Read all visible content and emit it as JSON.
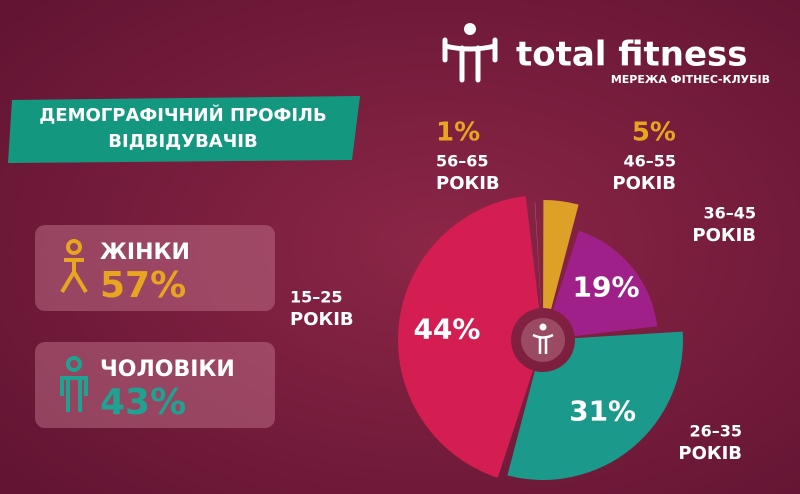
{
  "brand": {
    "name": "total fitness",
    "tagline": "МЕРЕЖА ФІТНЕС-КЛУБІВ"
  },
  "title_lines": [
    "ДЕМОГРАФІЧНИЙ ПРОФІЛЬ",
    "ВІДВІДУВАЧІВ"
  ],
  "gender": {
    "categories": [
      "ЖІНКИ",
      "ЧОЛОВІКИ"
    ],
    "values": [
      57,
      43
    ],
    "value_labels": [
      "57%",
      "43%"
    ],
    "colors": [
      "#e8a620",
      "#1fa291"
    ]
  },
  "chart_data": {
    "type": "pie",
    "categories": [
      [
        "56–65",
        "РОКІВ"
      ],
      [
        "46–55",
        "РОКІВ"
      ],
      [
        "36–45",
        "РОКІВ"
      ],
      [
        "26–35",
        "РОКІВ"
      ],
      [
        "15–25",
        "РОКІВ"
      ]
    ],
    "values": [
      1,
      5,
      19,
      31,
      44
    ],
    "value_labels": [
      "1%",
      "5%",
      "19%",
      "31%",
      "44%"
    ],
    "colors": [
      "#b37a8a",
      "#dca126",
      "#a0208a",
      "#1b998b",
      "#d41d50"
    ]
  }
}
